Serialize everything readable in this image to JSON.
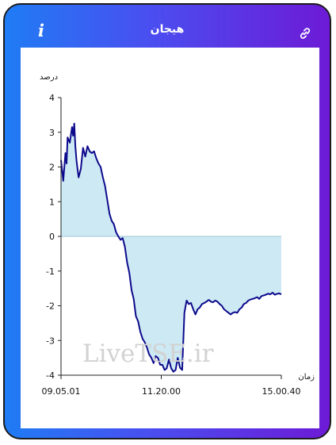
{
  "header": {
    "title": "هیجان",
    "info_icon": "info-icon",
    "link_icon": "link-icon"
  },
  "colors": {
    "gradient_start": "#1f7cf4",
    "gradient_end": "#6d1ad6",
    "line": "#0d0a8c",
    "fill": "#cde9f3"
  },
  "watermark": "LiveTSE.ir",
  "chart_data": {
    "type": "area",
    "ylabel": "درصد",
    "xlabel": "زمان",
    "ylim": [
      -4,
      4
    ],
    "yticks": [
      "4",
      "3",
      "2",
      "1",
      "0",
      "-1",
      "-2",
      "-3",
      "-4"
    ],
    "xticks": [
      "09.05.01",
      "11.20.00",
      "15.00.40"
    ],
    "xlim": [
      0,
      1
    ],
    "xtick_positions": [
      0,
      0.455,
      1
    ],
    "grid": false,
    "series": [
      {
        "x": [
          0,
          0.01,
          0.02,
          0.025,
          0.03,
          0.04,
          0.05,
          0.055,
          0.06,
          0.065,
          0.07,
          0.075,
          0.08,
          0.09,
          0.1,
          0.11,
          0.12,
          0.13,
          0.14,
          0.15,
          0.16,
          0.17,
          0.18,
          0.19,
          0.2,
          0.21,
          0.22,
          0.23,
          0.24,
          0.25,
          0.26,
          0.27,
          0.28,
          0.29,
          0.3,
          0.31,
          0.32,
          0.33,
          0.34,
          0.35,
          0.36,
          0.37,
          0.38,
          0.39,
          0.4,
          0.41,
          0.42,
          0.43,
          0.44,
          0.45,
          0.46,
          0.47,
          0.48,
          0.49,
          0.5,
          0.51,
          0.52,
          0.53,
          0.54,
          0.55,
          0.56,
          0.57,
          0.58,
          0.59,
          0.6,
          0.61,
          0.62,
          0.63,
          0.64,
          0.65,
          0.66,
          0.67,
          0.675,
          0.68,
          0.69,
          0.7,
          0.71,
          0.72,
          0.73,
          0.74,
          0.75,
          0.76,
          0.77,
          0.78,
          0.79,
          0.8,
          0.81,
          0.82,
          0.83,
          0.84,
          0.85,
          0.86,
          0.87,
          0.88,
          0.89,
          0.9,
          0.91,
          0.92,
          0.93,
          0.94,
          0.95,
          0.96,
          0.97,
          0.98,
          0.99,
          1.0
        ],
        "y": [
          2.2,
          1.6,
          2.4,
          2.1,
          2.85,
          2.7,
          3.15,
          2.9,
          3.25,
          2.6,
          2.2,
          1.95,
          1.7,
          1.95,
          2.55,
          2.3,
          2.6,
          2.45,
          2.4,
          2.45,
          2.25,
          2.1,
          2.0,
          1.7,
          1.45,
          1.05,
          0.65,
          0.45,
          0.35,
          0.12,
          0.0,
          -0.1,
          -0.05,
          -0.3,
          -0.75,
          -1.05,
          -1.55,
          -1.8,
          -2.3,
          -2.45,
          -2.75,
          -2.95,
          -3.05,
          -3.2,
          -3.4,
          -3.5,
          -3.65,
          -3.45,
          -3.5,
          -3.7,
          -3.7,
          -3.85,
          -3.8,
          -3.55,
          -3.8,
          -3.9,
          -3.85,
          -3.5,
          -3.78,
          -3.85,
          -2.2,
          -1.85,
          -1.95,
          -1.92,
          -2.1,
          -2.25,
          -2.1,
          -2.05,
          -1.95,
          -1.92,
          -1.88,
          -1.83,
          -1.85,
          -1.88,
          -1.9,
          -1.85,
          -1.88,
          -1.95,
          -2.0,
          -2.1,
          -2.15,
          -2.2,
          -2.25,
          -2.2,
          -2.18,
          -2.2,
          -2.1,
          -2.05,
          -1.95,
          -1.92,
          -1.85,
          -1.82,
          -1.8,
          -1.78,
          -1.75,
          -1.8,
          -1.72,
          -1.7,
          -1.68,
          -1.65,
          -1.67,
          -1.62,
          -1.68,
          -1.66,
          -1.64,
          -1.67
        ]
      }
    ]
  }
}
